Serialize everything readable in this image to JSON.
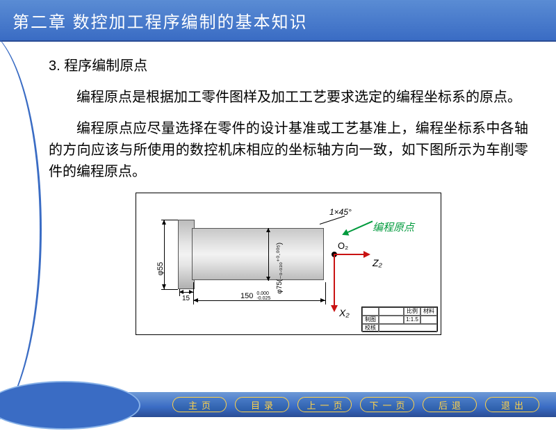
{
  "header": {
    "title": "第二章  数控加工程序编制的基本知识"
  },
  "section": {
    "number": "3.  程序编制原点",
    "para1": "编程原点是根据加工零件图样及加工工艺要求选定的编程坐标系的原点。",
    "para2": "编程原点应尽量选择在零件的设计基准或工艺基准上，编程坐标系中各轴的方向应该与所使用的数控机床相应的坐标轴方向一致，如下图所示为车削零件的编程原点。"
  },
  "diagram": {
    "chamfer": "1×45°",
    "origin_label": "编程原点",
    "o_label": "O₂",
    "z_label": "Z₂",
    "x_label": "X₂",
    "phi55": "φ55",
    "phi75": "φ75(₋₀.₀₃₀⁺⁰·⁰⁰⁵)",
    "len150": "150",
    "len150_tol_top": "0.000",
    "len150_tol_bot": "-0.025",
    "len15": "15",
    "title_block": {
      "scale_h": "比例",
      "scale_v": "1:1.5",
      "mat_h": "材料",
      "drawn": "制图",
      "checked": "校核"
    }
  },
  "nav": {
    "home": "主页",
    "toc": "目录",
    "prev": "上一页",
    "next": "下一页",
    "back": "后退",
    "exit": "退出"
  },
  "colors": {
    "header_grad_top": "#5a8cd4",
    "header_grad_bot": "#3a6cc4",
    "accent_green": "#009a3c",
    "accent_red": "#c91212",
    "btn_border": "#ffd24a"
  }
}
